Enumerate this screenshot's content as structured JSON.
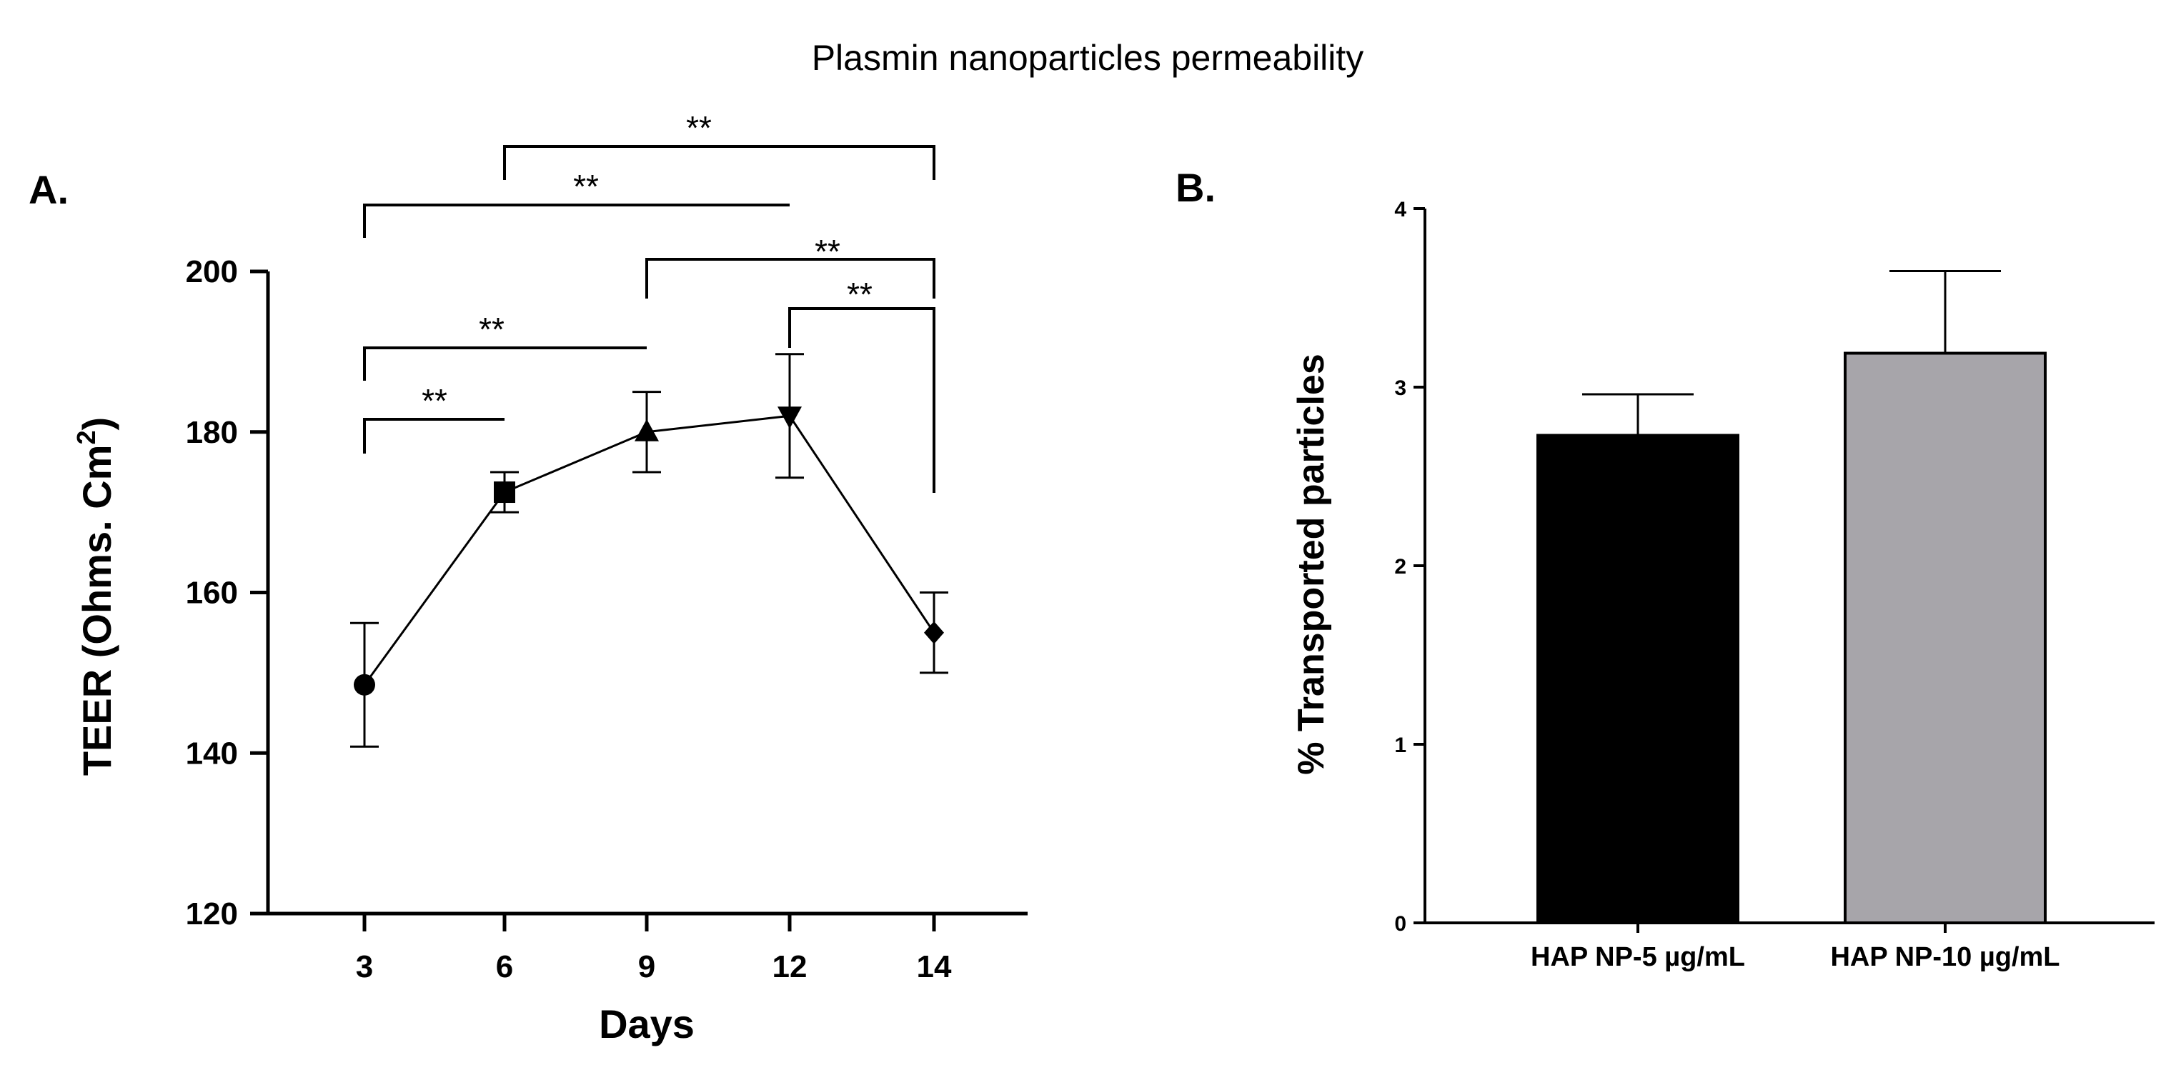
{
  "title": "Plasmin nanoparticles permeability",
  "chart_data": [
    {
      "panel": "A.",
      "type": "line",
      "xlabel": "Days",
      "ylabel_main": "TEER (Ohms. Cm",
      "ylabel_sup": "2",
      "ylabel_end": ")",
      "ylim": [
        120,
        200
      ],
      "yticks": [
        120,
        140,
        160,
        180,
        200
      ],
      "categories": [
        "3",
        "6",
        "9",
        "12",
        "14"
      ],
      "markers": [
        "circle",
        "square",
        "triangle-up",
        "triangle-down",
        "diamond"
      ],
      "values": [
        148.5,
        172.5,
        180,
        182,
        155
      ],
      "error": [
        7.7,
        2.5,
        5,
        7.7,
        5
      ],
      "grid": false,
      "significance": [
        {
          "from": "3",
          "to": "6",
          "label": "**"
        },
        {
          "from": "3",
          "to": "9",
          "label": "**"
        },
        {
          "from": "3",
          "to": "12",
          "label": "**"
        },
        {
          "from": "6",
          "to": "14",
          "label": "**"
        },
        {
          "from": "9",
          "to": "14",
          "label": "**"
        },
        {
          "from": "12",
          "to": "14",
          "label": "**"
        }
      ]
    },
    {
      "panel": "B.",
      "type": "bar",
      "ylabel": "% Transported particles",
      "ylim": [
        0,
        4
      ],
      "yticks": [
        0,
        1,
        2,
        3,
        4
      ],
      "categories": [
        "HAP NP-5 µg/mL",
        "HAP NP-10 µg/mL"
      ],
      "values": [
        2.73,
        3.19
      ],
      "error": [
        0.23,
        0.46
      ],
      "colors": [
        "#000000",
        "#a7a5aa"
      ],
      "grid": false
    }
  ]
}
